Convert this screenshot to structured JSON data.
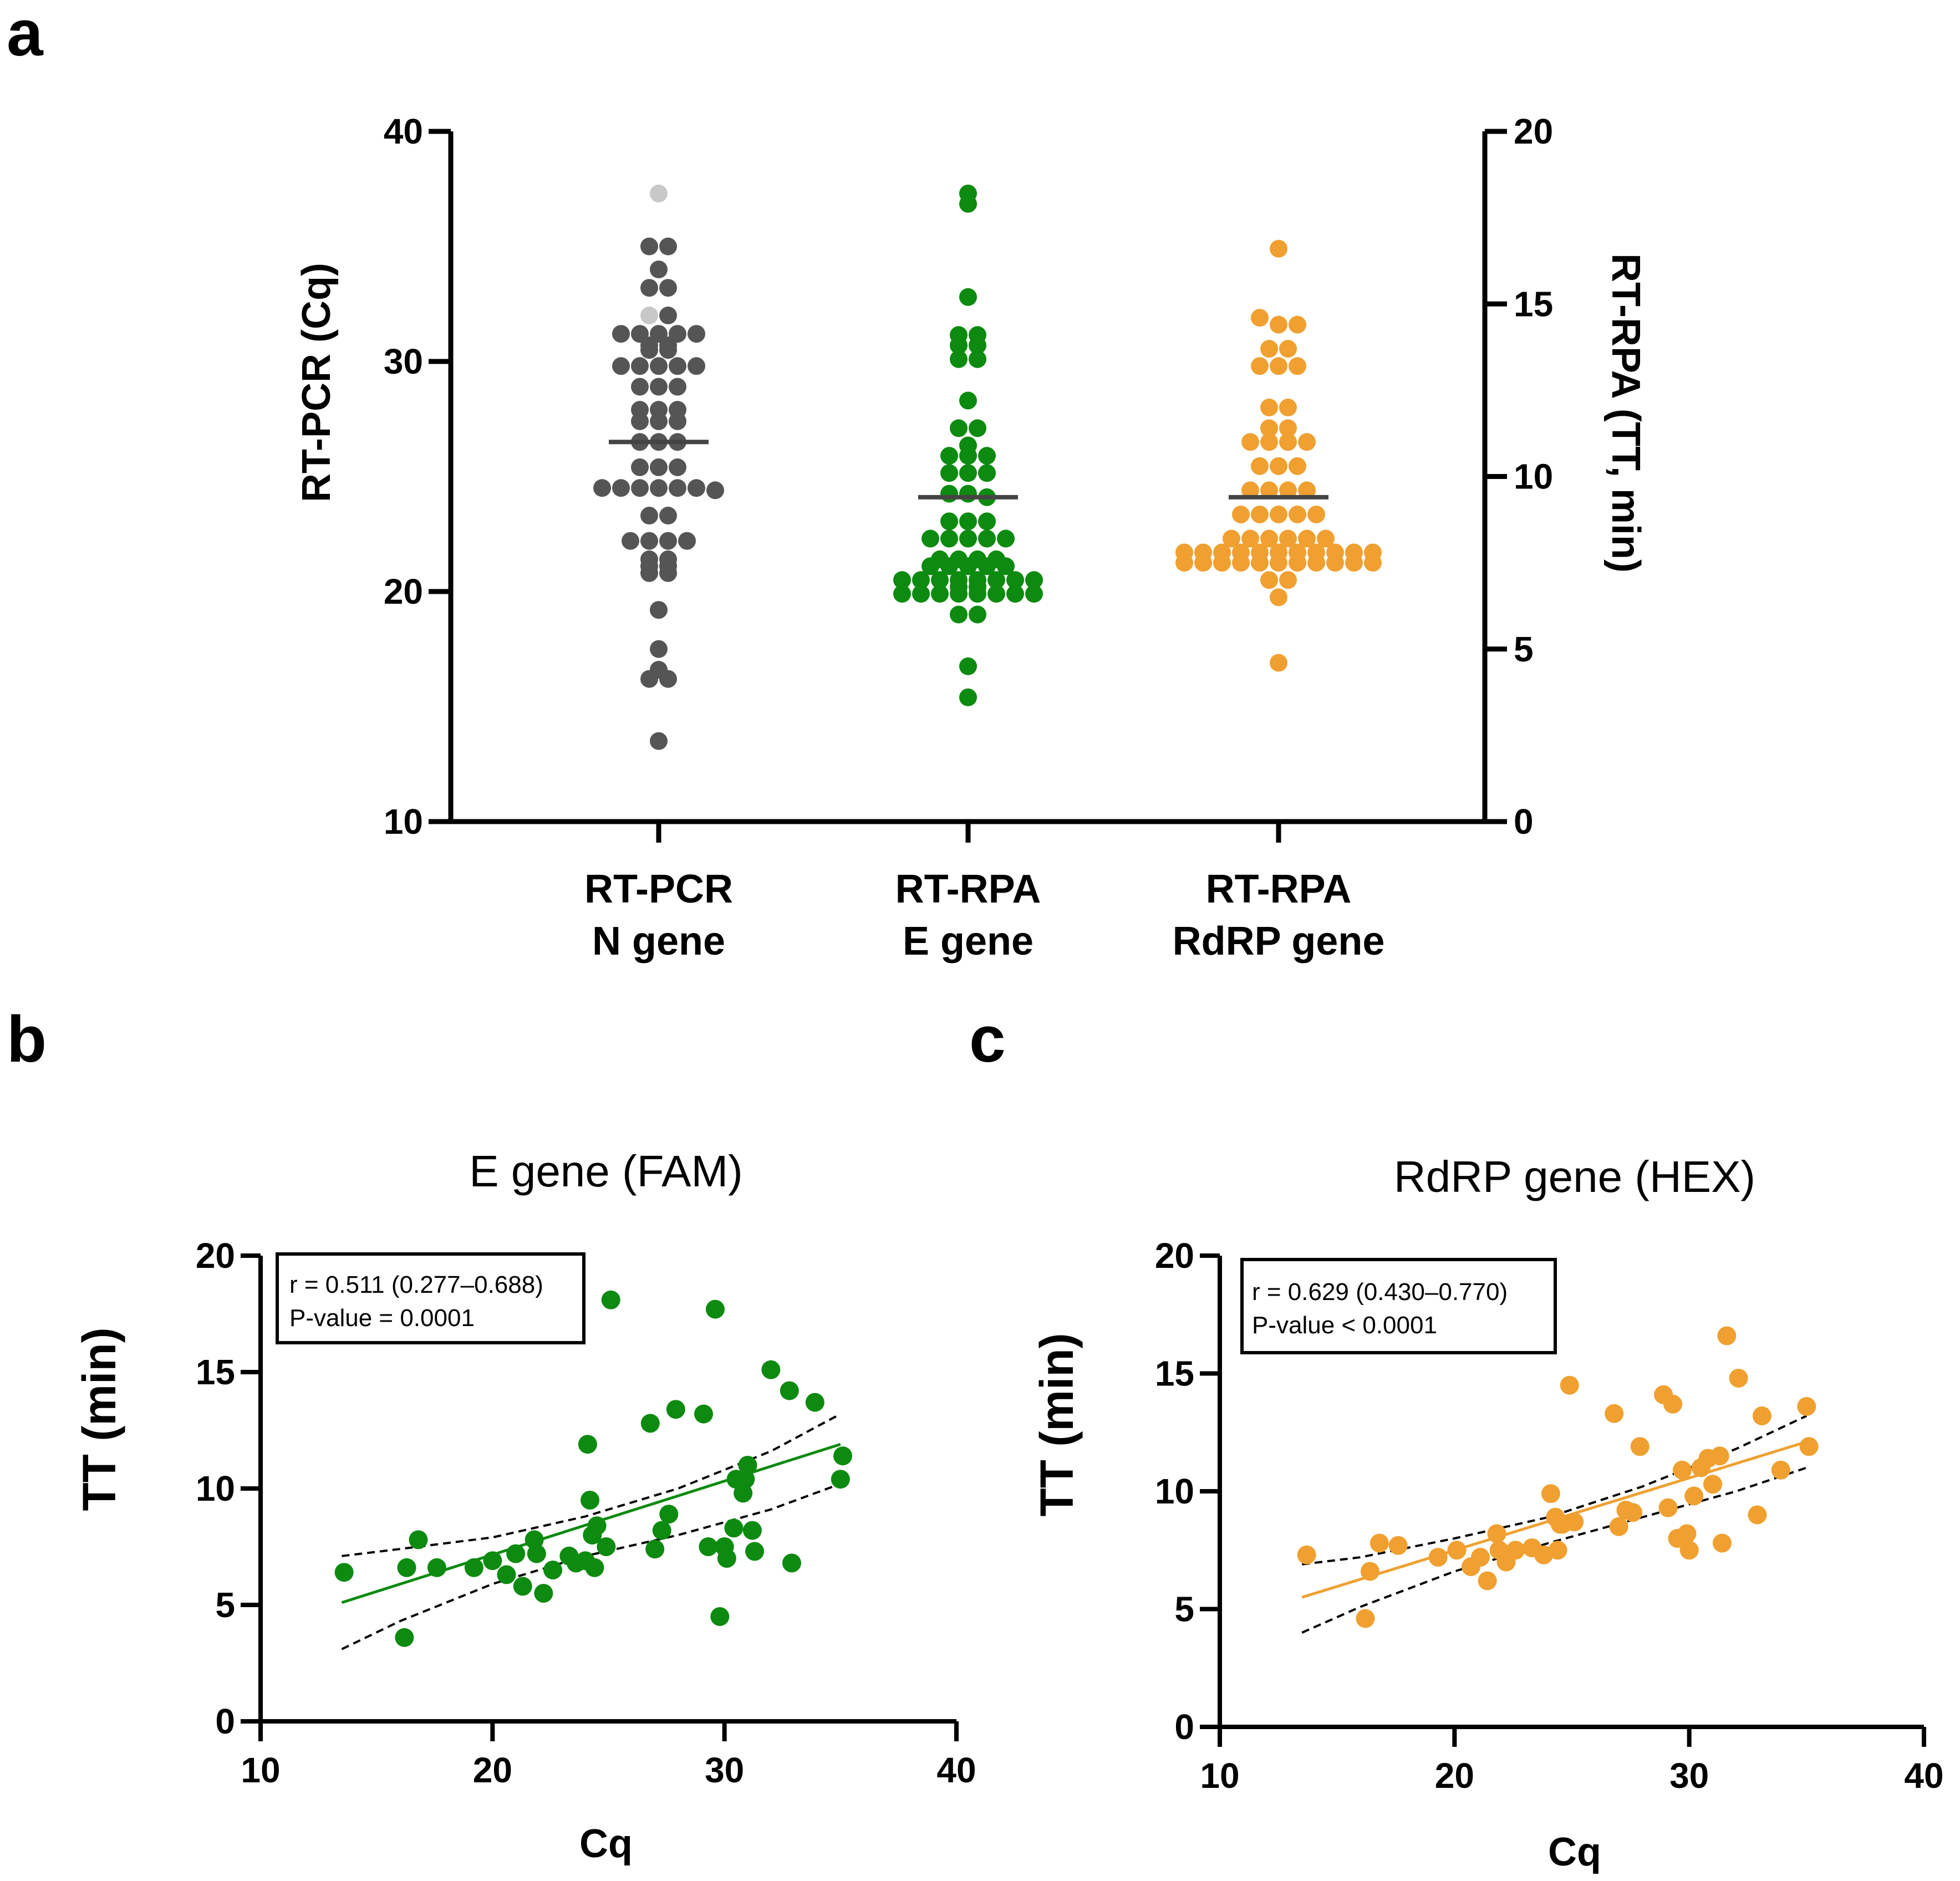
{
  "colors": {
    "pcr": "#555555",
    "pcr_light": "#c8c8c8",
    "e_gene": "#0d8a10",
    "rdrp": "#f0a030",
    "median": "#444444",
    "axis": "#000000"
  },
  "chart_data": [
    {
      "panel": "a",
      "type": "scatter",
      "subtype": "dot-plot",
      "title": "",
      "left_axis": {
        "label": "RT-PCR (Cq)",
        "range": [
          10,
          40
        ],
        "ticks": [
          "10",
          "20",
          "30",
          "40"
        ]
      },
      "right_axis": {
        "label": "RT-RPA (TT, min)",
        "range": [
          0,
          20
        ],
        "ticks": [
          "0",
          "5",
          "10",
          "15",
          "20"
        ]
      },
      "categories": [
        {
          "line1": "RT-PCR",
          "line2": "N gene"
        },
        {
          "line1": "RT-RPA",
          "line2": "E gene"
        },
        {
          "line1": "RT-RPA",
          "line2": "RdRP gene"
        }
      ],
      "series": [
        {
          "name": "RT-PCR N gene",
          "axis": "left",
          "color": "#555555",
          "median": 26.5,
          "values": [
            37.3,
            32.0,
            35.0,
            35.0,
            34.0,
            33.2,
            33.2,
            32.0,
            31.2,
            31.2,
            31.2,
            31.2,
            31.2,
            30.7,
            30.7,
            30.5,
            30.5,
            29.8,
            29.8,
            29.8,
            29.8,
            29.8,
            28.9,
            28.9,
            28.9,
            27.9,
            27.9,
            27.9,
            27.4,
            27.4,
            27.4,
            26.5,
            26.5,
            26.5,
            25.4,
            25.4,
            25.4,
            24.5,
            24.5,
            24.5,
            24.5,
            24.5,
            24.5,
            24.4,
            23.3,
            23.3,
            22.2,
            22.2,
            22.2,
            22.2,
            21.4,
            21.4,
            21.1,
            21.1,
            20.8,
            20.8,
            19.2,
            17.5,
            16.6,
            16.2,
            16.2,
            13.5
          ],
          "light_indices": [
            0,
            1
          ]
        },
        {
          "name": "RT-RPA E gene",
          "axis": "right",
          "color": "#0d8a10",
          "median": 9.4,
          "values": [
            18.2,
            17.9,
            15.2,
            14.1,
            14.1,
            13.8,
            13.8,
            13.4,
            13.4,
            12.2,
            11.4,
            11.4,
            10.9,
            10.6,
            10.6,
            10.6,
            10.1,
            10.1,
            10.1,
            9.5,
            9.5,
            9.4,
            8.7,
            8.7,
            8.7,
            8.2,
            8.2,
            8.2,
            8.2,
            8.2,
            7.6,
            7.6,
            7.6,
            7.6,
            7.4,
            7.4,
            7.4,
            7.4,
            7.4,
            7.0,
            7.0,
            7.0,
            7.0,
            7.0,
            7.0,
            7.0,
            7.0,
            6.8,
            6.8,
            6.6,
            6.6,
            6.6,
            6.6,
            6.6,
            6.6,
            6.6,
            6.6,
            6.0,
            6.0,
            4.5,
            3.6
          ]
        },
        {
          "name": "RT-RPA RdRP gene",
          "axis": "right",
          "color": "#f0a030",
          "median": 9.4,
          "values": [
            16.6,
            14.6,
            14.4,
            14.4,
            13.7,
            13.7,
            13.2,
            13.2,
            13.2,
            12.0,
            12.0,
            11.4,
            11.4,
            11.0,
            11.0,
            11.0,
            11.0,
            10.3,
            10.3,
            10.3,
            9.6,
            9.6,
            9.6,
            9.6,
            8.9,
            8.9,
            8.9,
            8.9,
            8.9,
            8.2,
            8.2,
            8.2,
            8.2,
            8.2,
            8.2,
            7.8,
            7.8,
            7.8,
            7.8,
            7.8,
            7.8,
            7.8,
            7.8,
            7.8,
            7.8,
            7.8,
            7.5,
            7.5,
            7.5,
            7.5,
            7.5,
            7.5,
            7.5,
            7.5,
            7.5,
            7.5,
            7.5,
            7.0,
            7.0,
            6.5,
            4.6
          ]
        }
      ]
    },
    {
      "panel": "b",
      "type": "scatter",
      "title": "E gene (FAM)",
      "xlabel": "Cq",
      "ylabel": "TT (min)",
      "xlim": [
        10,
        40
      ],
      "ylim": [
        0,
        20
      ],
      "xticks": [
        "10",
        "20",
        "30",
        "40"
      ],
      "yticks": [
        "0",
        "5",
        "10",
        "15",
        "20"
      ],
      "color": "#0d8a10",
      "stats": {
        "line1": "r = 0.511 (0.277–0.688)",
        "line2": "P-value = 0.0001"
      },
      "fit": {
        "x": [
          13.5,
          35.0
        ],
        "y": [
          5.1,
          11.9
        ]
      },
      "ci_lower": {
        "x": [
          13.5,
          16,
          20,
          24,
          28,
          32,
          35.0
        ],
        "y": [
          3.1,
          4.3,
          5.9,
          7.1,
          8.0,
          9.1,
          10.2
        ]
      },
      "ci_upper": {
        "x": [
          13.5,
          16,
          20,
          24,
          28,
          32,
          35.0
        ],
        "y": [
          7.1,
          7.4,
          7.9,
          8.8,
          10.0,
          11.6,
          13.2
        ]
      },
      "points": {
        "x": [
          13.6,
          16.2,
          16.3,
          16.8,
          17.6,
          19.2,
          20.0,
          20.6,
          21.0,
          21.3,
          21.8,
          21.9,
          22.2,
          22.6,
          23.3,
          23.6,
          24.0,
          24.1,
          24.2,
          24.3,
          24.4,
          24.5,
          24.9,
          25.1,
          26.8,
          27.0,
          27.3,
          27.6,
          27.9,
          29.1,
          29.3,
          29.6,
          29.8,
          30.0,
          30.1,
          30.4,
          30.5,
          30.8,
          30.9,
          31.0,
          31.2,
          31.3,
          32.0,
          32.8,
          32.9,
          33.9,
          35.0,
          35.1
        ],
        "y": [
          6.4,
          3.6,
          6.6,
          7.8,
          6.6,
          6.6,
          6.9,
          6.3,
          7.2,
          5.8,
          7.8,
          7.2,
          5.5,
          6.5,
          7.1,
          6.8,
          6.9,
          11.9,
          9.5,
          8.0,
          6.6,
          8.4,
          7.5,
          18.1,
          12.8,
          7.4,
          8.2,
          8.9,
          13.4,
          13.2,
          7.5,
          17.7,
          4.5,
          7.5,
          7.0,
          8.3,
          10.4,
          9.8,
          10.4,
          11.0,
          8.2,
          7.3,
          15.1,
          14.2,
          6.8,
          13.7,
          10.4,
          11.4
        ]
      }
    },
    {
      "panel": "c",
      "type": "scatter",
      "title": "RdRP gene (HEX)",
      "xlabel": "Cq",
      "ylabel": "TT (min)",
      "xlim": [
        10,
        40
      ],
      "ylim": [
        0,
        20
      ],
      "xticks": [
        "10",
        "20",
        "30",
        "40"
      ],
      "yticks": [
        "0",
        "5",
        "10",
        "15",
        "20"
      ],
      "color": "#f0a030",
      "stats": {
        "line1": "r = 0.629 (0.430–0.770)",
        "line2": "P-value < 0.0001"
      },
      "fit": {
        "x": [
          13.5,
          35.0
        ],
        "y": [
          5.5,
          12.1
        ]
      },
      "ci_lower": {
        "x": [
          13.5,
          16,
          20,
          24,
          28,
          32,
          35.0
        ],
        "y": [
          4.0,
          5.1,
          6.6,
          7.8,
          8.9,
          10.0,
          11.0
        ]
      },
      "ci_upper": {
        "x": [
          13.5,
          16,
          20,
          24,
          28,
          32,
          35.0
        ],
        "y": [
          6.9,
          7.2,
          8.0,
          8.9,
          10.2,
          11.8,
          13.2
        ]
      },
      "points": {
        "x": [
          13.7,
          16.2,
          16.4,
          16.8,
          17.6,
          19.3,
          20.1,
          20.7,
          21.1,
          21.4,
          21.8,
          21.9,
          22.2,
          22.6,
          23.3,
          23.8,
          24.1,
          24.3,
          24.4,
          24.5,
          24.6,
          24.9,
          25.1,
          26.8,
          27.0,
          27.3,
          27.6,
          27.9,
          28.9,
          29.1,
          29.3,
          29.5,
          29.7,
          29.9,
          30.0,
          30.2,
          30.5,
          30.8,
          31.0,
          31.3,
          31.4,
          31.6,
          32.1,
          32.9,
          33.1,
          33.9,
          35.0,
          35.1
        ],
        "y": [
          7.3,
          4.6,
          6.6,
          7.8,
          7.7,
          7.2,
          7.5,
          6.8,
          7.2,
          6.2,
          8.2,
          7.5,
          7.0,
          7.5,
          7.6,
          7.3,
          9.9,
          8.9,
          7.5,
          8.6,
          8.6,
          14.5,
          8.7,
          13.3,
          8.5,
          9.2,
          9.1,
          11.9,
          14.1,
          9.3,
          13.7,
          8.0,
          10.9,
          8.2,
          7.5,
          9.8,
          11.0,
          11.4,
          10.3,
          11.5,
          7.8,
          16.6,
          14.8,
          9.0,
          13.2,
          10.9,
          13.6,
          11.9
        ]
      }
    }
  ]
}
